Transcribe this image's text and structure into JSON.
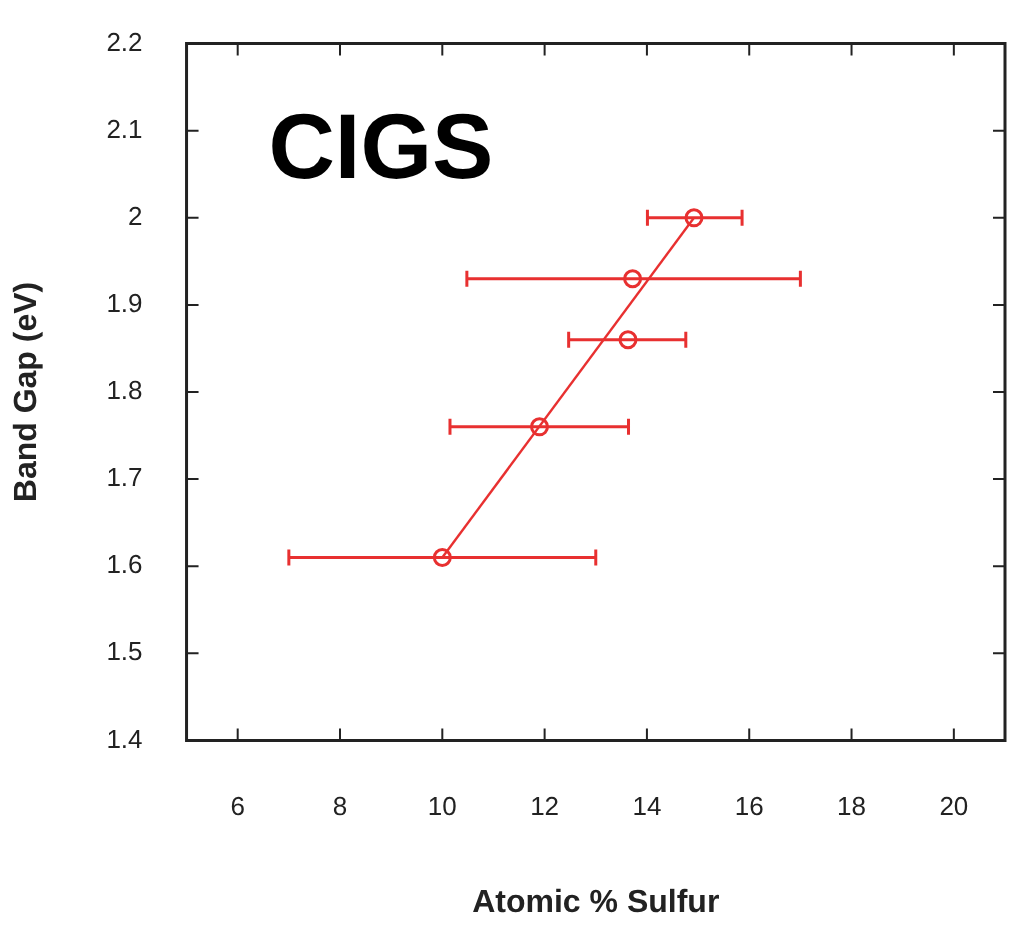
{
  "chart_data": {
    "type": "scatter",
    "xlabel": "Atomic % Sulfur",
    "ylabel": "Band Gap (eV)",
    "annotations": [
      "CIGS"
    ],
    "xlim": [
      5,
      21
    ],
    "xticks": [
      6,
      8,
      10,
      12,
      14,
      16,
      18,
      20
    ],
    "ylim": [
      1.4,
      2.2
    ],
    "yticks": [
      1.4,
      1.5,
      1.6,
      1.7,
      1.8,
      1.9,
      2,
      2.1,
      2.2
    ],
    "marker": "circle",
    "series": [
      {
        "color": "#e83030",
        "x": [
          10,
          11.9,
          13.63,
          13.72,
          14.92
        ],
        "values": [
          1.61,
          1.76,
          1.86,
          1.93,
          2.0
        ],
        "xerrors": [
          [
            7.0,
            13.0
          ],
          [
            10.15,
            13.64
          ],
          [
            12.47,
            14.76
          ],
          [
            10.48,
            17.0
          ],
          [
            14.01,
            15.86
          ]
        ]
      },
      {
        "type": "line",
        "color": "#e83030",
        "x": [
          10,
          14.92
        ],
        "values": [
          1.61,
          2.0
        ],
        "marker": "none"
      }
    ]
  }
}
